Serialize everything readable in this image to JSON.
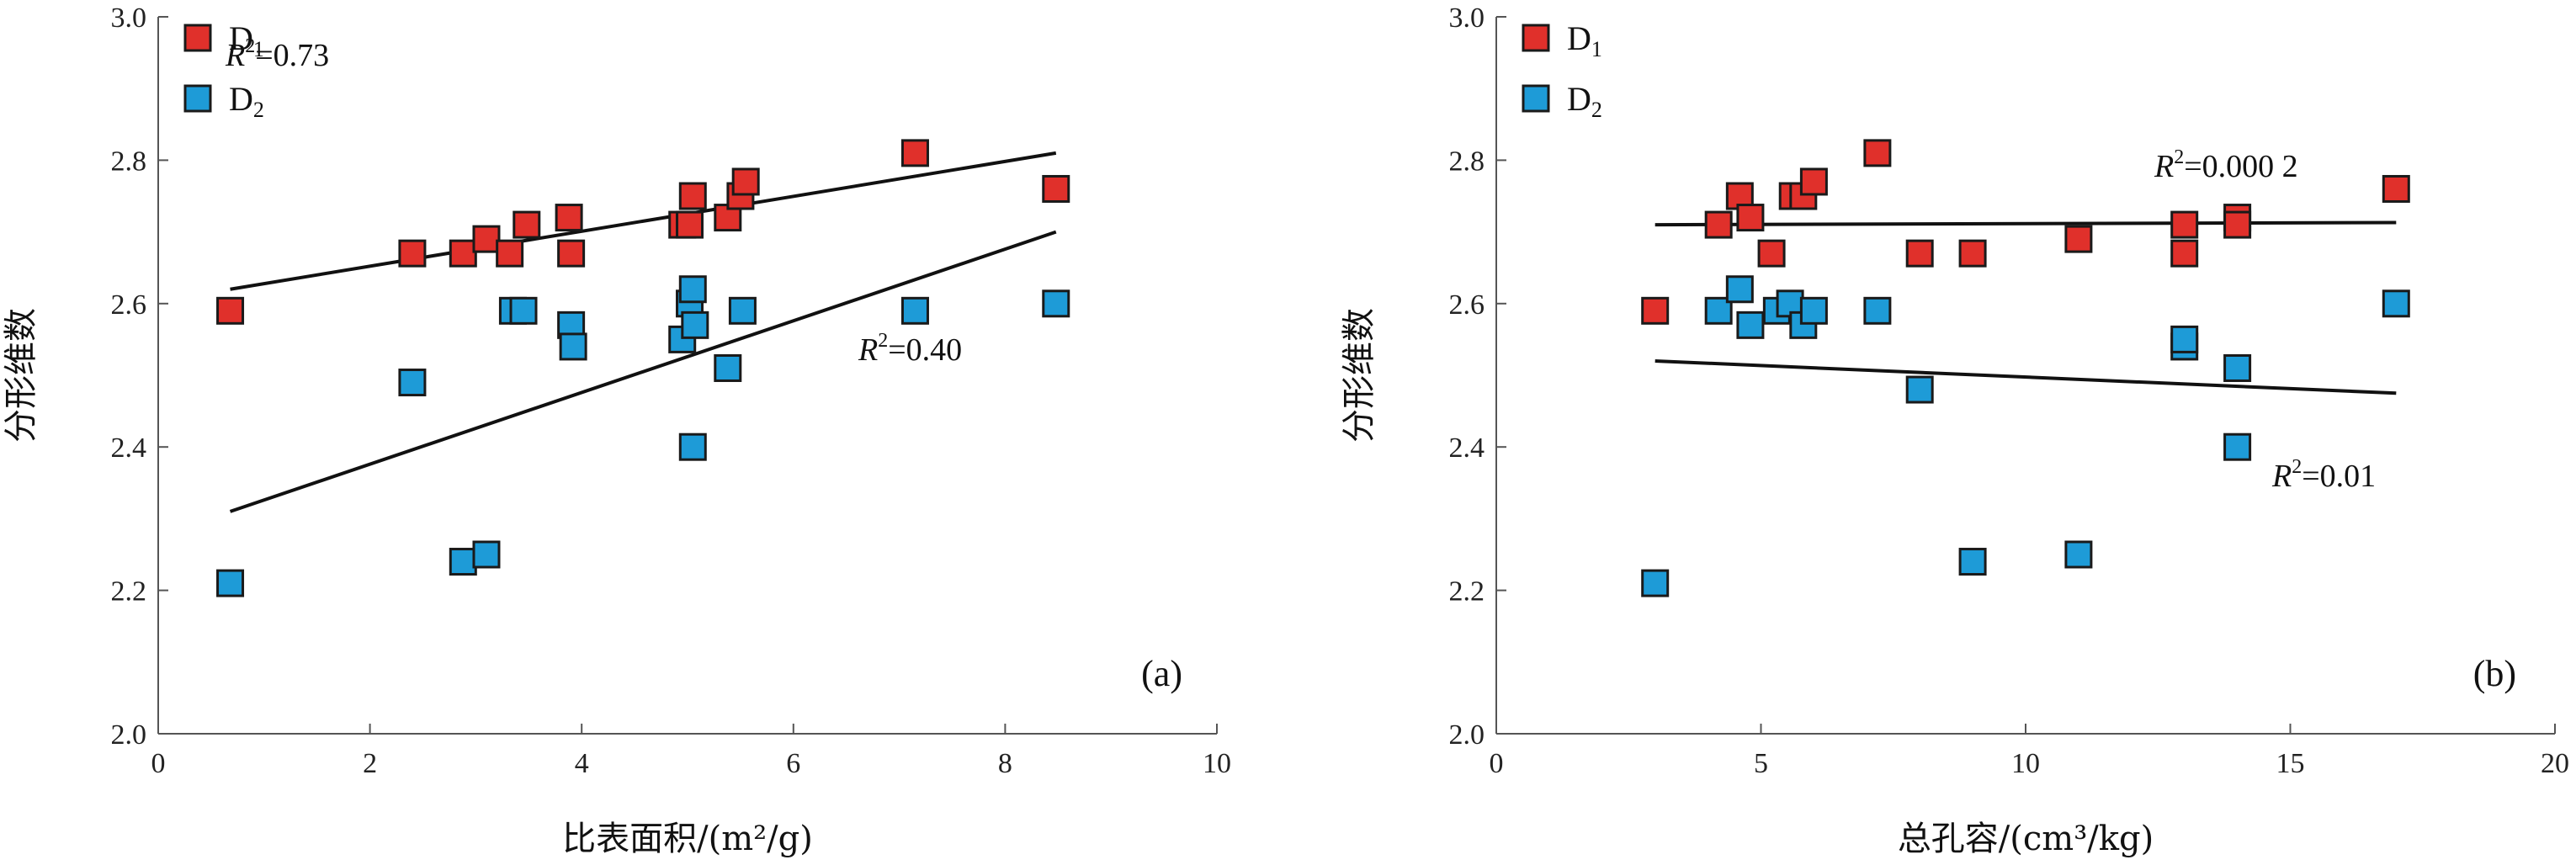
{
  "chart_data": [
    {
      "type": "scatter",
      "panel_label": "(a)",
      "xlabel": "比表面积/(m²/g)",
      "ylabel": "分形维数",
      "xlim": [
        0,
        10
      ],
      "ylim": [
        2.0,
        3.0
      ],
      "xticks": [
        "0",
        "2",
        "4",
        "6",
        "8",
        "10"
      ],
      "yticks": [
        "2.0",
        "2.2",
        "2.4",
        "2.6",
        "2.8",
        "3.0"
      ],
      "legend_position": "top-left",
      "series": [
        {
          "name": "D1",
          "color": "#e0302b",
          "x": [
            0.68,
            2.4,
            2.88,
            3.1,
            3.32,
            3.48,
            3.88,
            3.9,
            4.95,
            5.02,
            5.05,
            5.38,
            5.5,
            5.55,
            7.15,
            8.48
          ],
          "y": [
            2.59,
            2.67,
            2.67,
            2.69,
            2.67,
            2.71,
            2.72,
            2.67,
            2.71,
            2.71,
            2.75,
            2.72,
            2.75,
            2.77,
            2.81,
            2.76
          ],
          "fit": {
            "x": [
              0.68,
              8.48
            ],
            "y": [
              2.62,
              2.81
            ],
            "r2": "0.73"
          }
        },
        {
          "name": "D2",
          "color": "#1e9bd7",
          "x": [
            0.68,
            2.4,
            2.88,
            3.1,
            3.35,
            3.45,
            3.9,
            3.92,
            4.95,
            5.02,
            5.05,
            5.05,
            5.07,
            5.38,
            5.52,
            7.15,
            8.48
          ],
          "y": [
            2.21,
            2.49,
            2.24,
            2.25,
            2.59,
            2.59,
            2.57,
            2.54,
            2.55,
            2.6,
            2.4,
            2.62,
            2.57,
            2.51,
            2.59,
            2.59,
            2.6
          ],
          "fit": {
            "x": [
              0.68,
              8.48
            ],
            "y": [
              2.31,
              2.7
            ],
            "r2": "0.40"
          }
        }
      ]
    },
    {
      "type": "scatter",
      "panel_label": "(b)",
      "xlabel": "总孔容/(cm³/kg)",
      "ylabel": "分形维数",
      "xlim": [
        0,
        20
      ],
      "ylim": [
        2.0,
        3.0
      ],
      "xticks": [
        "0",
        "5",
        "10",
        "15",
        "20"
      ],
      "yticks": [
        "2.0",
        "2.2",
        "2.4",
        "2.6",
        "2.8",
        "3.0"
      ],
      "legend_position": "top-left",
      "series": [
        {
          "name": "D1",
          "color": "#e0302b",
          "x": [
            3.0,
            4.2,
            4.6,
            4.8,
            5.2,
            5.6,
            5.8,
            6.0,
            7.2,
            8.0,
            9.0,
            11.0,
            13.0,
            13.0,
            14.0,
            14.0,
            17.0
          ],
          "y": [
            2.59,
            2.71,
            2.75,
            2.72,
            2.67,
            2.75,
            2.75,
            2.77,
            2.81,
            2.67,
            2.67,
            2.69,
            2.67,
            2.71,
            2.72,
            2.71,
            2.76
          ],
          "fit": {
            "x": [
              3.0,
              17.0
            ],
            "y": [
              2.71,
              2.713
            ],
            "r2": "0.000 2"
          }
        },
        {
          "name": "D2",
          "color": "#1e9bd7",
          "x": [
            3.0,
            4.2,
            4.6,
            4.8,
            5.3,
            5.55,
            5.8,
            6.0,
            7.2,
            8.0,
            9.0,
            11.0,
            13.0,
            13.0,
            14.0,
            14.0,
            17.0
          ],
          "y": [
            2.21,
            2.59,
            2.62,
            2.57,
            2.59,
            2.6,
            2.57,
            2.59,
            2.59,
            2.48,
            2.24,
            2.25,
            2.54,
            2.55,
            2.51,
            2.4,
            2.6
          ],
          "fit": {
            "x": [
              3.0,
              17.0
            ],
            "y": [
              2.52,
              2.475
            ],
            "r2": "0.01"
          }
        }
      ]
    }
  ]
}
